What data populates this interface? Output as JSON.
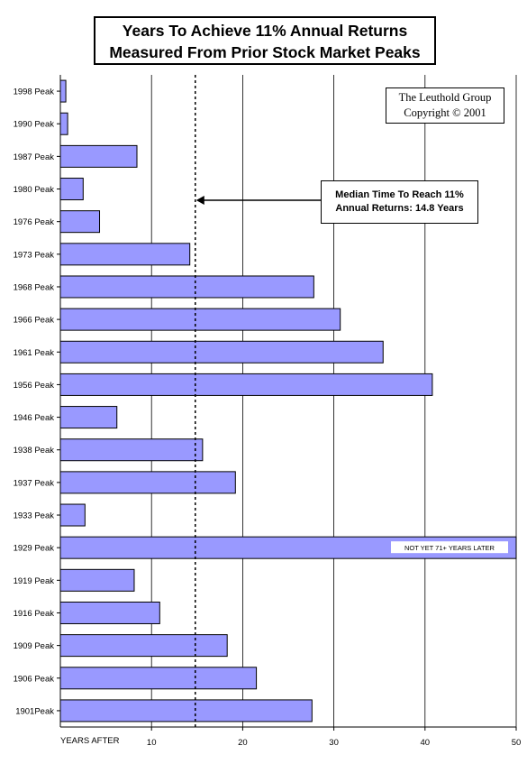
{
  "title": {
    "line1": "Years To Achieve 11% Annual Returns",
    "line2": "Measured From Prior Stock Market Peaks"
  },
  "source": {
    "line1": "The Leuthold Group",
    "line2": "Copyright © 2001"
  },
  "median_note": {
    "line1": "Median Time To Reach 11%",
    "line2": "Annual Returns: 14.8 Years"
  },
  "colors": {
    "bar_fill": "#9999ff",
    "bar_stroke": "#000000",
    "grid": "#000000"
  },
  "chart_data": {
    "type": "bar",
    "orientation": "horizontal",
    "xlabel": "YEARS AFTER",
    "xlim": [
      0,
      50
    ],
    "xticks": [
      10,
      20,
      30,
      40,
      50
    ],
    "grid": true,
    "categories": [
      "1998 Peak",
      "1990 Peak",
      "1987 Peak",
      "1980 Peak",
      "1976 Peak",
      "1973 Peak",
      "1968 Peak",
      "1966 Peak",
      "1961 Peak",
      "1956 Peak",
      "1946 Peak",
      "1938 Peak",
      "1937 Peak",
      "1933 Peak",
      "1929 Peak",
      "1919 Peak",
      "1916 Peak",
      "1909 Peak",
      "1906 Peak",
      "1901Peak"
    ],
    "values": [
      0.6,
      0.8,
      8.4,
      2.5,
      4.3,
      14.2,
      27.8,
      30.7,
      35.4,
      40.8,
      6.2,
      15.6,
      19.2,
      2.7,
      50,
      8.1,
      10.9,
      18.3,
      21.5,
      27.6
    ],
    "annotations": [
      {
        "category": "1929 Peak",
        "text": "NOT YET 71+ YEARS LATER"
      }
    ],
    "median": 14.8
  }
}
